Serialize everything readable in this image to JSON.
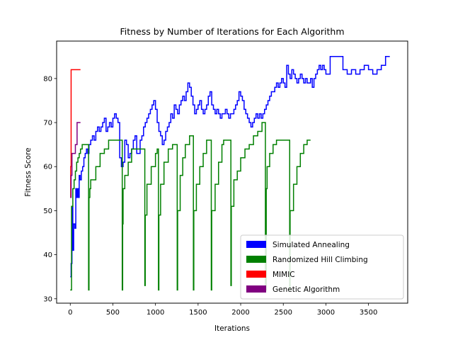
{
  "chart_data": {
    "type": "line",
    "title": "Fitness by Number of Iterations for Each Algorithm",
    "xlabel": "Iterations",
    "ylabel": "Fitness Score",
    "xlim": [
      -160,
      3960
    ],
    "ylim": [
      29,
      88.5
    ],
    "xticks": [
      0,
      500,
      1000,
      1500,
      2000,
      2500,
      3000,
      3500
    ],
    "yticks": [
      30,
      40,
      50,
      60,
      70,
      80
    ],
    "grid": false,
    "legend_position": "lower-right",
    "series": [
      {
        "name": "Simulated Annealing",
        "color": "#0000ff",
        "x": [
          0,
          10,
          20,
          30,
          40,
          55,
          65,
          75,
          85,
          95,
          105,
          115,
          130,
          145,
          160,
          175,
          190,
          205,
          220,
          240,
          260,
          280,
          300,
          320,
          340,
          360,
          380,
          400,
          420,
          440,
          460,
          480,
          500,
          520,
          540,
          560,
          580,
          600,
          620,
          640,
          660,
          680,
          700,
          720,
          740,
          760,
          780,
          800,
          820,
          840,
          860,
          880,
          900,
          920,
          940,
          960,
          980,
          1000,
          1020,
          1040,
          1060,
          1080,
          1100,
          1120,
          1140,
          1160,
          1180,
          1200,
          1220,
          1240,
          1260,
          1280,
          1300,
          1320,
          1340,
          1360,
          1380,
          1400,
          1420,
          1440,
          1460,
          1480,
          1500,
          1520,
          1540,
          1560,
          1580,
          1600,
          1620,
          1640,
          1660,
          1680,
          1700,
          1720,
          1740,
          1760,
          1780,
          1800,
          1820,
          1840,
          1860,
          1880,
          1900,
          1920,
          1940,
          1960,
          1980,
          2000,
          2020,
          2040,
          2060,
          2080,
          2100,
          2120,
          2140,
          2160,
          2180,
          2200,
          2220,
          2240,
          2260,
          2280,
          2300,
          2320,
          2340,
          2360,
          2380,
          2400,
          2420,
          2440,
          2460,
          2480,
          2500,
          2520,
          2540,
          2560,
          2580,
          2600,
          2620,
          2640,
          2660,
          2680,
          2700,
          2720,
          2740,
          2760,
          2780,
          2800,
          2820,
          2840,
          2860,
          2880,
          2900,
          2920,
          2940,
          2960,
          2980,
          3000,
          3050,
          3100,
          3150,
          3200,
          3250,
          3300,
          3350,
          3400,
          3450,
          3500,
          3550,
          3600,
          3650,
          3700,
          3750
        ],
        "y": [
          35,
          38,
          51,
          41,
          47,
          46,
          55,
          53,
          55,
          53,
          58,
          57,
          59,
          60,
          62,
          63,
          64,
          63,
          65,
          66,
          67,
          66,
          68,
          69,
          68,
          69,
          70,
          71,
          68,
          69,
          70,
          69,
          71,
          72,
          71,
          70,
          62,
          60,
          61,
          66,
          65,
          62,
          63,
          64,
          66,
          67,
          63,
          63,
          66,
          67,
          69,
          70,
          71,
          72,
          73,
          74,
          75,
          73,
          70,
          68,
          67,
          65,
          66,
          68,
          69,
          70,
          72,
          71,
          74,
          73,
          72,
          74,
          75,
          76,
          75,
          77,
          79,
          78,
          76,
          74,
          72,
          73,
          74,
          75,
          73,
          72,
          73,
          74,
          76,
          77,
          74,
          73,
          72,
          73,
          72,
          71,
          72,
          72,
          73,
          72,
          71,
          72,
          72,
          73,
          74,
          75,
          77,
          76,
          75,
          73,
          72,
          71,
          70,
          69,
          70,
          71,
          72,
          71,
          72,
          71,
          72,
          73,
          74,
          75,
          76,
          77,
          77,
          78,
          79,
          78,
          79,
          80,
          79,
          78,
          83,
          81,
          80,
          82,
          81,
          80,
          79,
          80,
          81,
          80,
          79,
          80,
          79,
          79,
          80,
          78,
          80,
          81,
          82,
          83,
          82,
          83,
          82,
          81,
          85,
          85,
          85,
          82,
          81,
          82,
          81,
          82,
          83,
          82,
          81,
          82,
          83,
          85,
          85
        ]
      },
      {
        "name": "Randomized Hill Climbing",
        "color": "#008000",
        "x": [
          0,
          15,
          30,
          45,
          60,
          75,
          90,
          105,
          120,
          140,
          160,
          180,
          200,
          210,
          215,
          220,
          230,
          240,
          260,
          300,
          350,
          400,
          450,
          500,
          550,
          600,
          610,
          615,
          620,
          640,
          680,
          720,
          760,
          800,
          850,
          870,
          875,
          880,
          900,
          950,
          1000,
          1020,
          1030,
          1035,
          1040,
          1060,
          1100,
          1150,
          1200,
          1250,
          1255,
          1260,
          1290,
          1320,
          1350,
          1400,
          1440,
          1445,
          1450,
          1480,
          1520,
          1560,
          1600,
          1640,
          1650,
          1655,
          1660,
          1700,
          1740,
          1780,
          1800,
          1850,
          1880,
          1885,
          1890,
          1920,
          1960,
          2000,
          2050,
          2100,
          2150,
          2200,
          2250,
          2280,
          2290,
          2300,
          2310,
          2340,
          2380,
          2420,
          2460,
          2500,
          2540,
          2570,
          2575,
          2580,
          2620,
          2660,
          2700,
          2740,
          2780,
          2820
        ],
        "y": [
          32,
          51,
          55,
          57,
          59,
          61,
          62,
          63,
          64,
          65,
          65,
          65,
          65,
          65,
          32,
          53,
          55,
          57,
          57,
          60,
          63,
          64,
          66,
          66,
          66,
          66,
          32,
          47,
          55,
          58,
          61,
          64,
          64,
          64,
          64,
          64,
          33,
          49,
          56,
          60,
          63,
          64,
          64,
          32,
          49,
          56,
          61,
          64,
          65,
          65,
          32,
          50,
          58,
          62,
          65,
          67,
          67,
          32,
          50,
          56,
          60,
          63,
          66,
          66,
          66,
          32,
          50,
          56,
          61,
          65,
          66,
          66,
          66,
          33,
          51,
          57,
          59,
          62,
          64,
          65,
          67,
          68,
          70,
          70,
          32,
          55,
          60,
          63,
          65,
          66,
          66,
          66,
          66,
          66,
          32,
          50,
          56,
          60,
          63,
          65,
          66,
          66
        ]
      },
      {
        "name": "MIMIC",
        "color": "#ff0000",
        "x": [
          0,
          5,
          10,
          20,
          50,
          80,
          100,
          120
        ],
        "y": [
          53,
          60,
          82,
          82,
          82,
          82,
          82,
          82
        ]
      },
      {
        "name": "Genetic Algorithm",
        "color": "#800080",
        "x": [
          0,
          10,
          20,
          40,
          60,
          80,
          100,
          120
        ],
        "y": [
          53,
          58,
          63,
          63,
          65,
          70,
          70,
          70
        ]
      }
    ]
  }
}
